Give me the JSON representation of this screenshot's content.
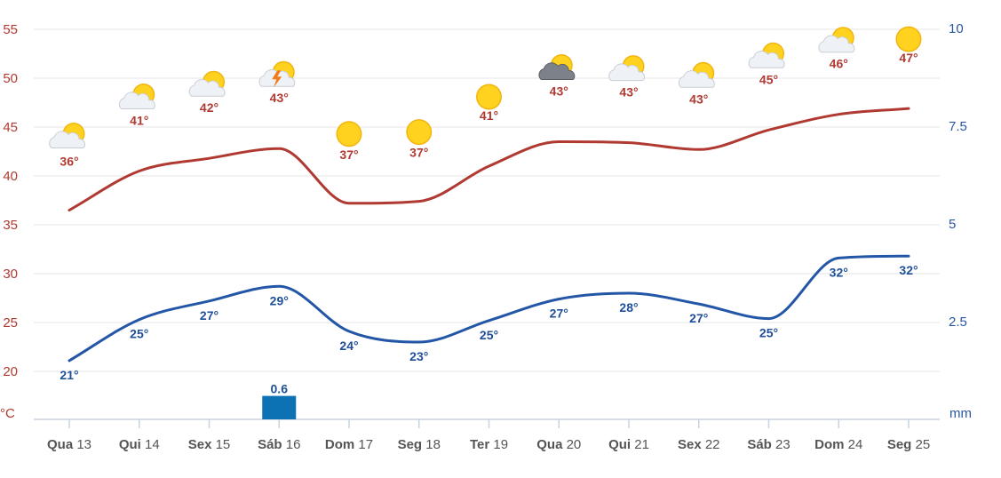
{
  "chart_data": {
    "type": "line",
    "categories": [
      {
        "day": "Qua",
        "num": "13"
      },
      {
        "day": "Qui",
        "num": "14"
      },
      {
        "day": "Sex",
        "num": "15"
      },
      {
        "day": "Sáb",
        "num": "16"
      },
      {
        "day": "Dom",
        "num": "17"
      },
      {
        "day": "Seg",
        "num": "18"
      },
      {
        "day": "Ter",
        "num": "19"
      },
      {
        "day": "Qua",
        "num": "20"
      },
      {
        "day": "Qui",
        "num": "21"
      },
      {
        "day": "Sex",
        "num": "22"
      },
      {
        "day": "Sáb",
        "num": "23"
      },
      {
        "day": "Dom",
        "num": "24"
      },
      {
        "day": "Seg",
        "num": "25"
      }
    ],
    "series": [
      {
        "values": [
          36.5,
          40.5,
          41.8,
          42.8,
          37.2,
          37.4,
          41.0,
          43.5,
          43.4,
          42.7,
          44.7,
          46.3,
          46.9
        ],
        "labels": [
          "36°",
          "41°",
          "42°",
          "43°",
          "37°",
          "37°",
          "41°",
          "43°",
          "43°",
          "43°",
          "45°",
          "46°",
          "47°"
        ],
        "color": "#b03a32",
        "axis": "left"
      },
      {
        "values": [
          21.1,
          25.3,
          27.2,
          28.7,
          24.1,
          23.0,
          25.2,
          27.4,
          28.0,
          26.9,
          25.4,
          31.6,
          31.8
        ],
        "labels": [
          "21°",
          "25°",
          "27°",
          "29°",
          "24°",
          "23°",
          "25°",
          "27°",
          "28°",
          "27°",
          "25°",
          "32°",
          "32°"
        ],
        "color": "#2356a6",
        "axis": "left"
      },
      {
        "type": "bar",
        "values": [
          0,
          0,
          0,
          0.6,
          0,
          0,
          0,
          0,
          0,
          0,
          0,
          0,
          0
        ],
        "labels": [
          "",
          "",
          "",
          "0.6",
          "",
          "",
          "",
          "",
          "",
          "",
          "",
          "",
          ""
        ],
        "color": "#0c72b3",
        "axis": "right"
      }
    ],
    "weather_icons": [
      "partly-cloudy-icon",
      "partly-cloudy-icon",
      "partly-cloudy-icon",
      "thunderstorm-icon",
      "sunny-icon",
      "sunny-icon",
      "sunny-icon",
      "dark-cloud-sun-icon",
      "partly-cloudy-icon",
      "partly-cloudy-icon",
      "partly-cloudy-icon",
      "partly-cloudy-icon",
      "sunny-icon"
    ],
    "yleft": {
      "ticks": [
        "55",
        "50",
        "45",
        "40",
        "35",
        "30",
        "25",
        "20"
      ],
      "unit": "°C",
      "ylim": [
        16,
        56.5
      ]
    },
    "yright": {
      "ticks": [
        "10",
        "7.5",
        "5",
        "2.5"
      ],
      "unit": "mm",
      "ylim": [
        0,
        10
      ]
    },
    "grid": true
  }
}
